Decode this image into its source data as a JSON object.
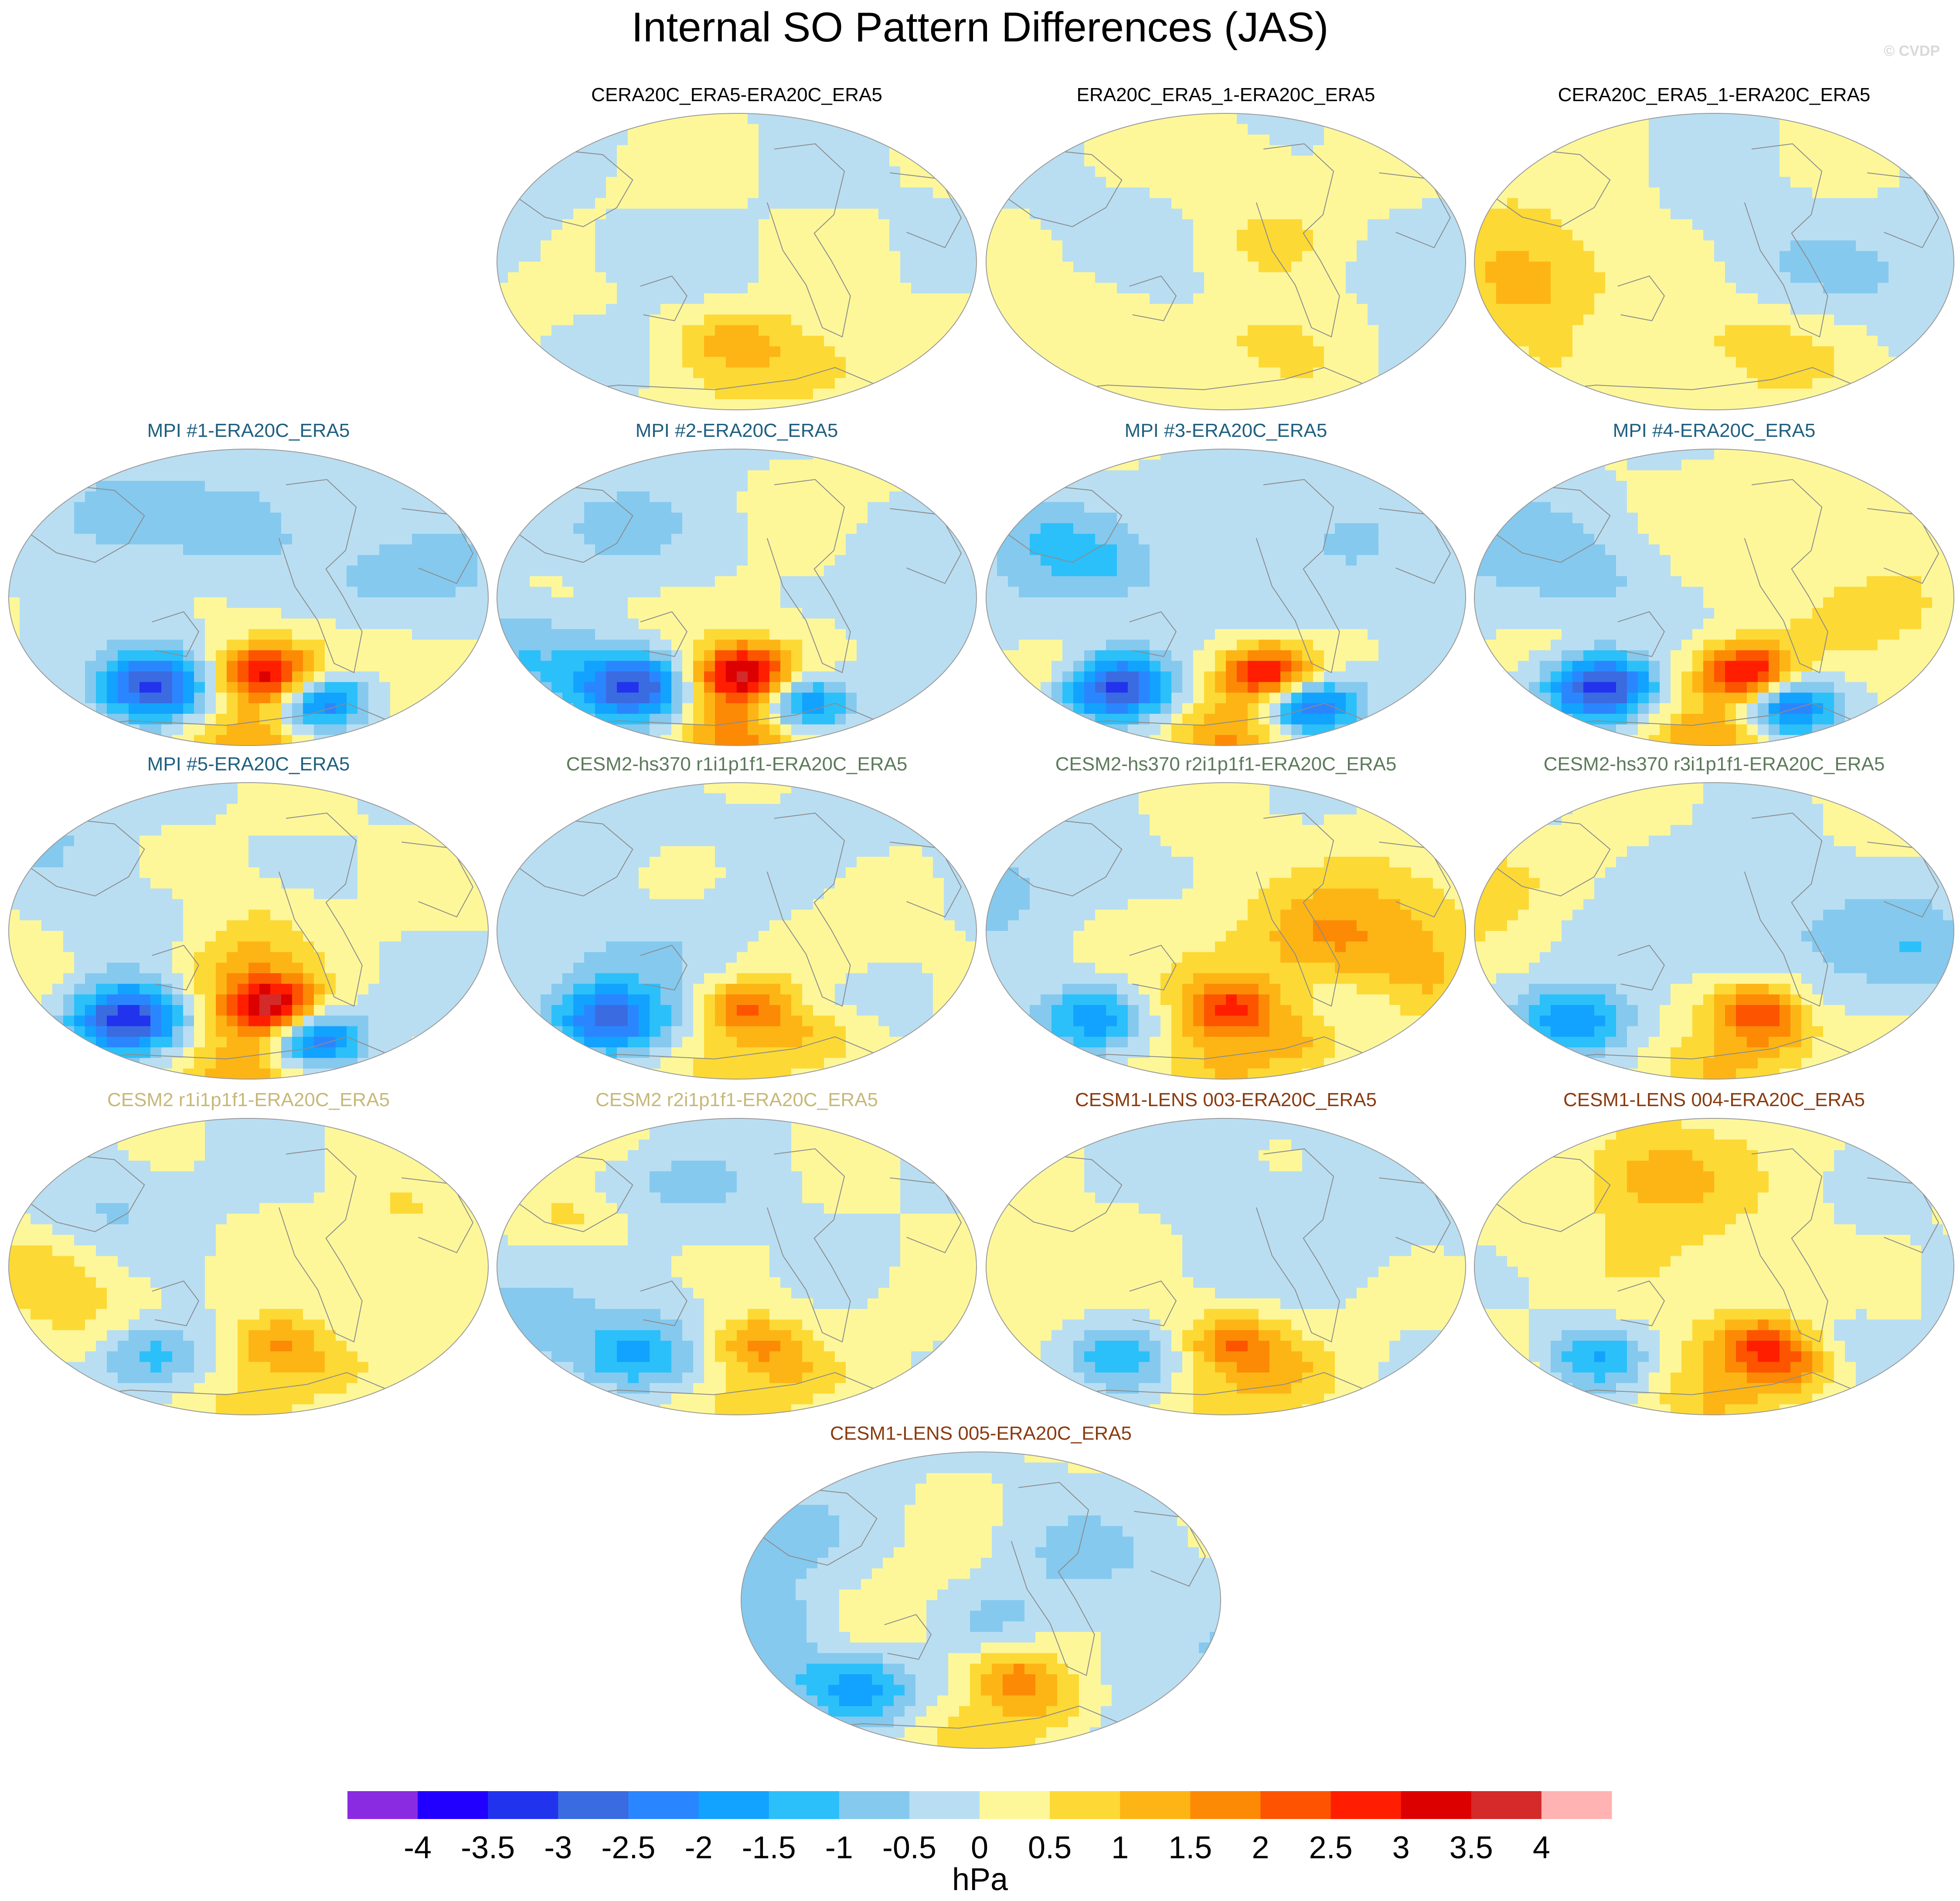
{
  "title": "Internal SO Pattern Differences (JAS)",
  "credit": "© CVDP",
  "colors": {
    "obs_title": "#000000",
    "mpi_title": "#1f5f80",
    "cesm2hs_title": "#5c7a5a",
    "cesm2_title": "#c8b878",
    "cesm1_title": "#8a3b10",
    "map_border": "#9a9a9a",
    "coast": "#8c8c8c"
  },
  "panels": [
    {
      "title": "CERA20C_ERA5-ERA20C_ERA5",
      "group": "obs",
      "row": 0,
      "col": 1
    },
    {
      "title": "ERA20C_ERA5_1-ERA20C_ERA5",
      "group": "obs",
      "row": 0,
      "col": 2
    },
    {
      "title": "CERA20C_ERA5_1-ERA20C_ERA5",
      "group": "obs",
      "row": 0,
      "col": 3
    },
    {
      "title": "MPI #1-ERA20C_ERA5",
      "group": "mpi",
      "row": 1,
      "col": 0
    },
    {
      "title": "MPI #2-ERA20C_ERA5",
      "group": "mpi",
      "row": 1,
      "col": 1
    },
    {
      "title": "MPI #3-ERA20C_ERA5",
      "group": "mpi",
      "row": 1,
      "col": 2
    },
    {
      "title": "MPI #4-ERA20C_ERA5",
      "group": "mpi",
      "row": 1,
      "col": 3
    },
    {
      "title": "MPI #5-ERA20C_ERA5",
      "group": "mpi",
      "row": 2,
      "col": 0
    },
    {
      "title": "CESM2-hs370 r1i1p1f1-ERA20C_ERA5",
      "group": "cesm2hs",
      "row": 2,
      "col": 1
    },
    {
      "title": "CESM2-hs370 r2i1p1f1-ERA20C_ERA5",
      "group": "cesm2hs",
      "row": 2,
      "col": 2
    },
    {
      "title": "CESM2-hs370 r3i1p1f1-ERA20C_ERA5",
      "group": "cesm2hs",
      "row": 2,
      "col": 3
    },
    {
      "title": "CESM2 r1i1p1f1-ERA20C_ERA5",
      "group": "cesm2",
      "row": 3,
      "col": 0
    },
    {
      "title": "CESM2 r2i1p1f1-ERA20C_ERA5",
      "group": "cesm2",
      "row": 3,
      "col": 1
    },
    {
      "title": "CESM1-LENS 003-ERA20C_ERA5",
      "group": "cesm1",
      "row": 3,
      "col": 2
    },
    {
      "title": "CESM1-LENS 004-ERA20C_ERA5",
      "group": "cesm1",
      "row": 3,
      "col": 3
    },
    {
      "title": "CESM1-LENS 005-ERA20C_ERA5",
      "group": "cesm1",
      "row": 4,
      "col": 1.5
    }
  ],
  "chart_data": {
    "type": "heatmap",
    "projection": "global map (pseudo-elliptical), Pacific-centered",
    "variable": "sea level pressure pattern difference",
    "colorbar": {
      "units": "hPa",
      "levels": [
        -4,
        -3.5,
        -3,
        -2.5,
        -2,
        -1.5,
        -1,
        -0.5,
        0,
        0.5,
        1,
        1.5,
        2,
        2.5,
        3,
        3.5,
        4
      ],
      "tick_labels": [
        "-4",
        "-3.5",
        "-3",
        "-2.5",
        "-2",
        "-1.5",
        "-1",
        "-0.5",
        "0",
        "0.5",
        "1",
        "1.5",
        "2",
        "2.5",
        "3",
        "3.5",
        "4"
      ],
      "colors": [
        "#8a2be2",
        "#2200ff",
        "#2233ee",
        "#3b6be0",
        "#2a86ff",
        "#12a2ff",
        "#2bc0fa",
        "#85c9ee",
        "#b9def2",
        "#fdf79a",
        "#fdd935",
        "#fdb515",
        "#fd8a05",
        "#fd5400",
        "#ff1e00",
        "#dd0000",
        "#d42a2a",
        "#ffb3b3"
      ]
    }
  }
}
